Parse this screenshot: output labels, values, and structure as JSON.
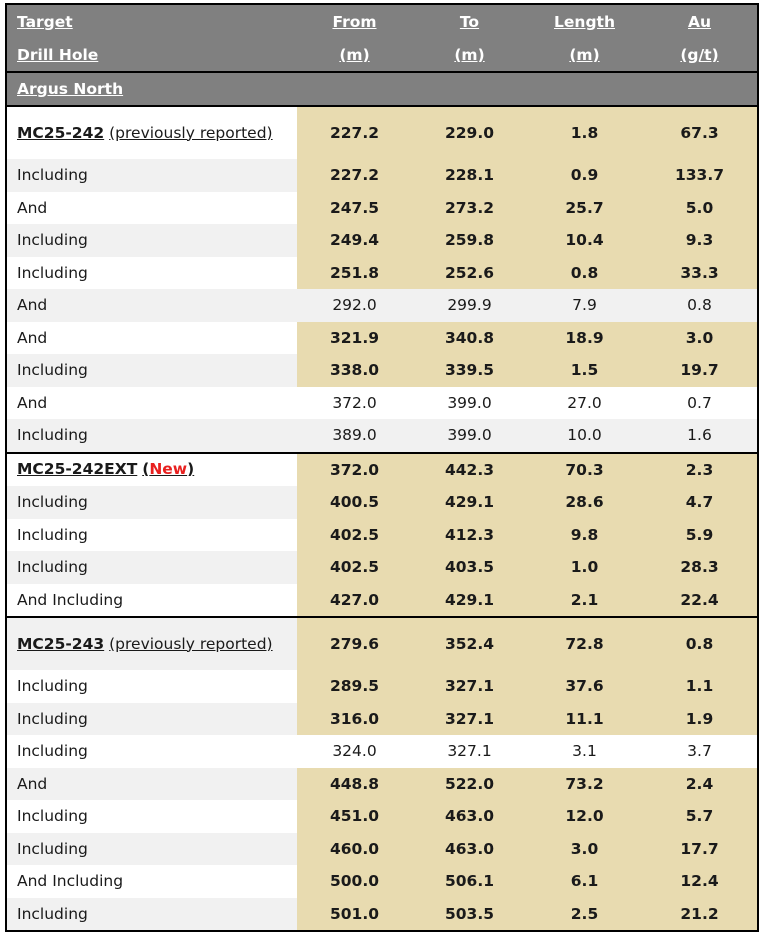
{
  "header": {
    "label_line1": "Target",
    "label_line2": "Drill Hole",
    "from_line1": "From",
    "from_line2": "(m)",
    "to_line1": "To",
    "to_line2": "(m)",
    "length_line1": "Length",
    "length_line2": "(m)",
    "au_line1": "Au",
    "au_line2": "(g/t)"
  },
  "region": {
    "name": "Argus North"
  },
  "colors": {
    "header_bg": "#808080",
    "highlight_bg": "#e8dbb0",
    "alt_row_bg": "#f1f1f1",
    "new_tag": "#e8201f"
  },
  "holes": [
    {
      "id": "MC25-242",
      "note": "(previously reported)",
      "summary": {
        "from": "227.2",
        "to": "229.0",
        "length": "1.8",
        "au": "67.3",
        "highlight": true
      },
      "intervals": [
        {
          "label": "Including",
          "from": "227.2",
          "to": "228.1",
          "length": "0.9",
          "au": "133.7",
          "highlight": true
        },
        {
          "label": "And",
          "from": "247.5",
          "to": "273.2",
          "length": "25.7",
          "au": "5.0",
          "highlight": true
        },
        {
          "label": "Including",
          "from": "249.4",
          "to": "259.8",
          "length": "10.4",
          "au": "9.3",
          "highlight": true
        },
        {
          "label": "Including",
          "from": "251.8",
          "to": "252.6",
          "length": "0.8",
          "au": "33.3",
          "highlight": true
        },
        {
          "label": "And",
          "from": "292.0",
          "to": "299.9",
          "length": "7.9",
          "au": "0.8",
          "highlight": false
        },
        {
          "label": "And",
          "from": "321.9",
          "to": "340.8",
          "length": "18.9",
          "au": "3.0",
          "highlight": true
        },
        {
          "label": "Including",
          "from": "338.0",
          "to": "339.5",
          "length": "1.5",
          "au": "19.7",
          "highlight": true
        },
        {
          "label": "And",
          "from": "372.0",
          "to": "399.0",
          "length": "27.0",
          "au": "0.7",
          "highlight": false
        },
        {
          "label": "Including",
          "from": "389.0",
          "to": "399.0",
          "length": "10.0",
          "au": "1.6",
          "highlight": false
        }
      ]
    },
    {
      "id": "MC25-242EXT",
      "paren_open": "(",
      "new_tag": "New",
      "paren_close": ")",
      "summary": {
        "from": "372.0",
        "to": "442.3",
        "length": "70.3",
        "au": "2.3",
        "highlight": true
      },
      "intervals": [
        {
          "label": "Including",
          "from": "400.5",
          "to": "429.1",
          "length": "28.6",
          "au": "4.7",
          "highlight": true
        },
        {
          "label": "Including",
          "from": "402.5",
          "to": "412.3",
          "length": "9.8",
          "au": "5.9",
          "highlight": true
        },
        {
          "label": "Including",
          "from": "402.5",
          "to": "403.5",
          "length": "1.0",
          "au": "28.3",
          "highlight": true
        },
        {
          "label": "And Including",
          "from": "427.0",
          "to": "429.1",
          "length": "2.1",
          "au": "22.4",
          "highlight": true
        }
      ]
    },
    {
      "id": "MC25-243",
      "note": "(previously reported)",
      "summary": {
        "from": "279.6",
        "to": "352.4",
        "length": "72.8",
        "au": "0.8",
        "highlight": true
      },
      "intervals": [
        {
          "label": "Including",
          "from": "289.5",
          "to": "327.1",
          "length": "37.6",
          "au": "1.1",
          "highlight": true
        },
        {
          "label": "Including",
          "from": "316.0",
          "to": "327.1",
          "length": "11.1",
          "au": "1.9",
          "highlight": true
        },
        {
          "label": "Including",
          "from": "324.0",
          "to": "327.1",
          "length": "3.1",
          "au": "3.7",
          "highlight": false
        },
        {
          "label": "And",
          "from": "448.8",
          "to": "522.0",
          "length": "73.2",
          "au": "2.4",
          "highlight": true
        },
        {
          "label": "Including",
          "from": "451.0",
          "to": "463.0",
          "length": "12.0",
          "au": "5.7",
          "highlight": true
        },
        {
          "label": "Including",
          "from": "460.0",
          "to": "463.0",
          "length": "3.0",
          "au": "17.7",
          "highlight": true
        },
        {
          "label": "And Including",
          "from": "500.0",
          "to": "506.1",
          "length": "6.1",
          "au": "12.4",
          "highlight": true
        },
        {
          "label": "Including",
          "from": "501.0",
          "to": "503.5",
          "length": "2.5",
          "au": "21.2",
          "highlight": true
        }
      ]
    }
  ]
}
